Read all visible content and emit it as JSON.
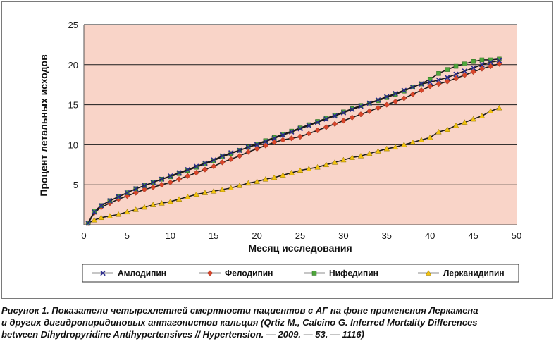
{
  "chart_data": {
    "type": "line",
    "title": "",
    "xlabel": "Месяц исследования",
    "ylabel": "Процент летальных исходов",
    "xlim": [
      0,
      50
    ],
    "ylim": [
      0,
      25
    ],
    "xticks": [
      0,
      5,
      10,
      15,
      20,
      25,
      30,
      35,
      40,
      45,
      50
    ],
    "yticks": [
      5,
      10,
      15,
      20,
      25
    ],
    "grid": "horizontal",
    "legend_position": "bottom",
    "plot_background": "#f9d4c8",
    "series": [
      {
        "name": "Амлодипин",
        "color": "#2b2b8c",
        "marker": "x",
        "x": [
          0.5,
          1.2,
          2,
          3,
          4,
          5,
          6,
          7,
          8,
          9,
          10,
          11,
          12,
          13,
          14,
          15,
          16,
          17,
          18,
          19,
          20,
          21,
          22,
          23,
          24,
          25,
          26,
          27,
          28,
          29,
          30,
          31,
          32,
          33,
          34,
          35,
          36,
          37,
          38,
          39,
          40,
          41,
          42,
          43,
          44,
          45,
          46,
          47,
          48
        ],
        "y": [
          0.2,
          1.6,
          2.4,
          3.0,
          3.5,
          4.0,
          4.5,
          4.9,
          5.3,
          5.7,
          6.1,
          6.5,
          6.9,
          7.3,
          7.7,
          8.1,
          8.6,
          9.0,
          9.3,
          9.7,
          10.0,
          10.4,
          10.8,
          11.2,
          11.6,
          12.0,
          12.4,
          12.8,
          13.2,
          13.6,
          14.0,
          14.4,
          14.8,
          15.2,
          15.6,
          16.0,
          16.4,
          16.8,
          17.2,
          17.6,
          17.8,
          18.1,
          18.4,
          18.8,
          19.2,
          19.6,
          20.0,
          20.3,
          20.5
        ]
      },
      {
        "name": "Фелодипин",
        "color": "#d9452a",
        "marker": "diamond",
        "x": [
          0.5,
          1.2,
          2,
          3,
          4,
          5,
          6,
          7,
          8,
          9,
          10,
          11,
          12,
          13,
          14,
          15,
          16,
          17,
          18,
          19,
          20,
          21,
          22,
          23,
          24,
          25,
          26,
          27,
          28,
          29,
          30,
          31,
          32,
          33,
          34,
          35,
          36,
          37,
          38,
          39,
          40,
          41,
          42,
          43,
          44,
          45,
          46,
          47,
          48
        ],
        "y": [
          0.2,
          1.5,
          2.2,
          2.7,
          3.2,
          3.6,
          4.0,
          4.4,
          4.7,
          5.0,
          5.3,
          5.7,
          6.1,
          6.5,
          6.9,
          7.3,
          7.8,
          8.2,
          8.6,
          9.1,
          9.5,
          9.9,
          10.3,
          10.6,
          10.8,
          11.0,
          11.4,
          11.8,
          12.2,
          12.6,
          13.0,
          13.4,
          13.8,
          14.2,
          14.6,
          15.0,
          15.4,
          15.8,
          16.3,
          16.8,
          17.3,
          17.6,
          17.9,
          18.3,
          18.7,
          19.1,
          19.5,
          19.8,
          20.1
        ]
      },
      {
        "name": "Нифедипин",
        "color": "#4fa63c",
        "marker": "square",
        "x": [
          0.5,
          1.2,
          2,
          3,
          4,
          5,
          6,
          7,
          8,
          9,
          10,
          11,
          12,
          13,
          14,
          15,
          16,
          17,
          18,
          19,
          20,
          21,
          22,
          23,
          24,
          25,
          26,
          27,
          28,
          29,
          30,
          31,
          32,
          33,
          34,
          35,
          36,
          37,
          38,
          39,
          40,
          41,
          42,
          43,
          44,
          45,
          46,
          47,
          48
        ],
        "y": [
          0.2,
          1.7,
          2.4,
          3.0,
          3.5,
          4.0,
          4.5,
          4.9,
          5.3,
          5.7,
          6.0,
          6.4,
          6.8,
          7.2,
          7.6,
          8.0,
          8.5,
          8.9,
          9.3,
          9.7,
          10.1,
          10.5,
          10.9,
          11.3,
          11.7,
          12.1,
          12.5,
          12.9,
          13.3,
          13.7,
          14.1,
          14.5,
          14.9,
          15.2,
          15.5,
          15.9,
          16.3,
          16.7,
          17.2,
          17.6,
          18.2,
          18.9,
          19.4,
          19.8,
          20.1,
          20.4,
          20.6,
          20.6,
          20.7
        ]
      },
      {
        "name": "Лерканидипин",
        "color": "#f2c20f",
        "marker": "triangle",
        "x": [
          0.5,
          1.2,
          2,
          3,
          4,
          5,
          6,
          7,
          8,
          9,
          10,
          11,
          12,
          13,
          14,
          15,
          16,
          17,
          18,
          19,
          20,
          21,
          22,
          23,
          24,
          25,
          26,
          27,
          28,
          29,
          30,
          31,
          32,
          33,
          34,
          35,
          36,
          37,
          38,
          39,
          40,
          41,
          42,
          43,
          44,
          45,
          46,
          47,
          48
        ],
        "y": [
          0.2,
          0.6,
          0.9,
          1.1,
          1.3,
          1.6,
          1.9,
          2.2,
          2.5,
          2.7,
          2.9,
          3.2,
          3.5,
          3.8,
          4.0,
          4.2,
          4.4,
          4.6,
          4.9,
          5.2,
          5.4,
          5.7,
          5.9,
          6.2,
          6.5,
          6.8,
          7.0,
          7.2,
          7.5,
          7.8,
          8.1,
          8.4,
          8.6,
          8.9,
          9.2,
          9.5,
          9.7,
          10.0,
          10.3,
          10.6,
          10.9,
          11.6,
          11.9,
          12.4,
          12.8,
          13.2,
          13.6,
          14.2,
          14.6
        ]
      }
    ]
  },
  "caption": {
    "lines": [
      "Рисунок 1. Показатели четырехлетней смертности пациентов с АГ на фоне применения Леркамена",
      "и других дигидропиридиновых антагонистов кальция (Qrtiz M., Calcino G. Inferred Mortality Differences",
      "between Dihydropyridine Antihypertensives // Hypertension. — 2009. — 53. — 1116)"
    ]
  }
}
